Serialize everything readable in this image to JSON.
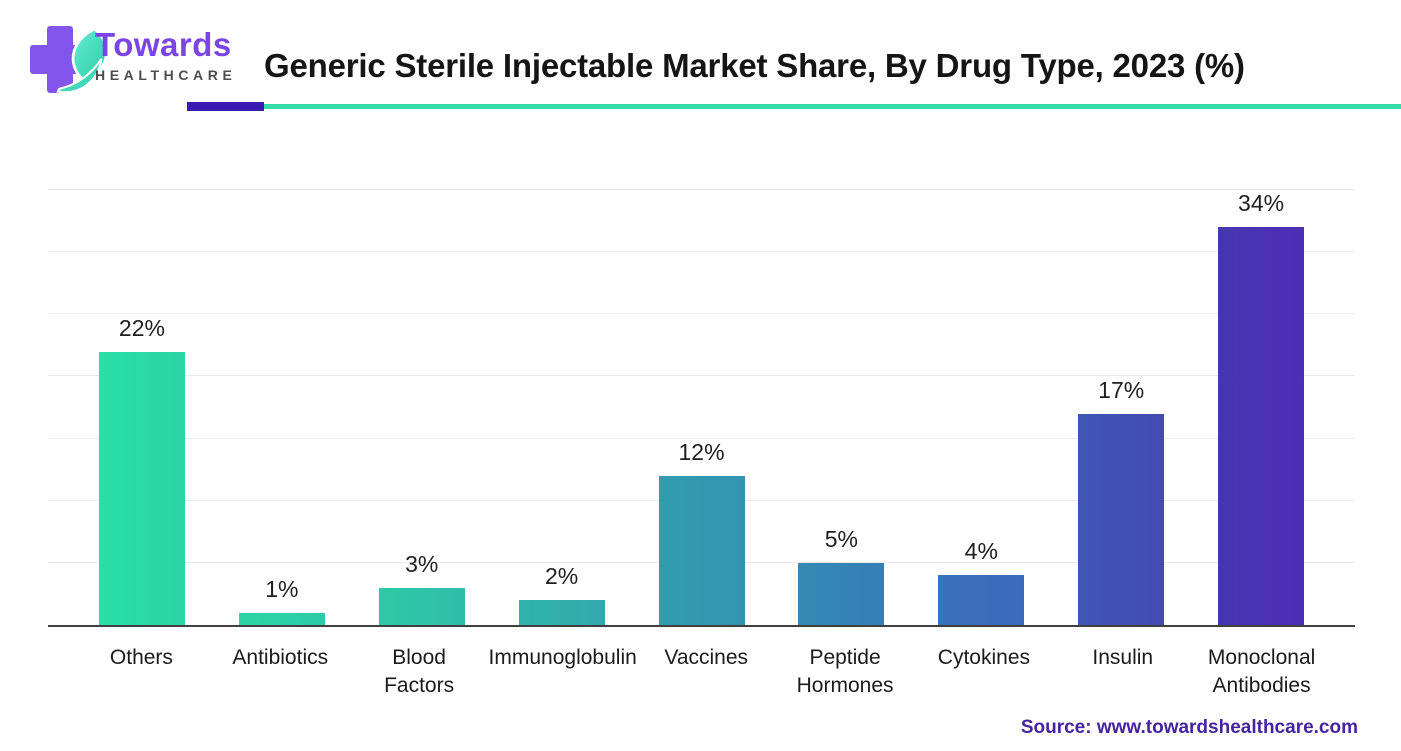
{
  "header": {
    "logo": {
      "brand": "Towards",
      "subtitle": "HEALTHCARE"
    },
    "title": "Generic Sterile Injectable Market Share, By Drug Type, 2023 (%)"
  },
  "chart_data": {
    "type": "bar",
    "title": "Generic Sterile Injectable Market Share, By Drug Type, 2023 (%)",
    "categories": [
      "Others",
      "Antibiotics",
      "Blood Factors",
      "Immunoglobulin",
      "Vaccines",
      "Peptide Hormones",
      "Cytokines",
      "Insulin",
      "Monoclonal Antibodies"
    ],
    "category_lines": [
      [
        "Others"
      ],
      [
        "Antibiotics"
      ],
      [
        "Blood",
        "Factors"
      ],
      [
        "Immunoglobulin"
      ],
      [
        "Vaccines"
      ],
      [
        "Peptide",
        "Hormones"
      ],
      [
        "Cytokines"
      ],
      [
        "Insulin"
      ],
      [
        "Monoclonal",
        "Antibodies"
      ]
    ],
    "values": [
      22,
      1,
      3,
      2,
      12,
      5,
      4,
      17,
      34
    ],
    "value_labels": [
      "22%",
      "1%",
      "3%",
      "2%",
      "12%",
      "5%",
      "4%",
      "17%",
      "34%"
    ],
    "xlabel": "",
    "ylabel": "",
    "ylim": [
      0,
      35
    ],
    "gridline_step": 5,
    "grid": true,
    "legend": false,
    "bar_colors": [
      [
        "#2ADEA6",
        "#2BD5A4"
      ],
      [
        "#2BD5A5",
        "#2DCCA7"
      ],
      [
        "#2EC9A7",
        "#30BDAA"
      ],
      [
        "#30B4AA",
        "#32A9AD"
      ],
      [
        "#319DAE",
        "#3394B1"
      ],
      [
        "#348AB3",
        "#357EB8"
      ],
      [
        "#3972BA",
        "#3C69BD"
      ],
      [
        "#3F56B4",
        "#434BB3"
      ],
      [
        "#4537B0",
        "#4D2DB6"
      ]
    ]
  },
  "footer": {
    "source": "Source: www.towardshealthcare.com"
  },
  "colors": {
    "accent_purple": "#3A1BB2",
    "accent_teal": "#36DDA8",
    "logo_cross_purple": "#8355EA",
    "brand_text_purple": "#7B45E6",
    "brand_sub_gray": "#4d4d4d",
    "source_purple": "#45249E",
    "title_text": "#151515",
    "gridline": "#ebebeb",
    "axis_line": "#404040",
    "leaf_teal_light": "#63EFD2",
    "leaf_teal_dark": "#2EC9A8"
  }
}
